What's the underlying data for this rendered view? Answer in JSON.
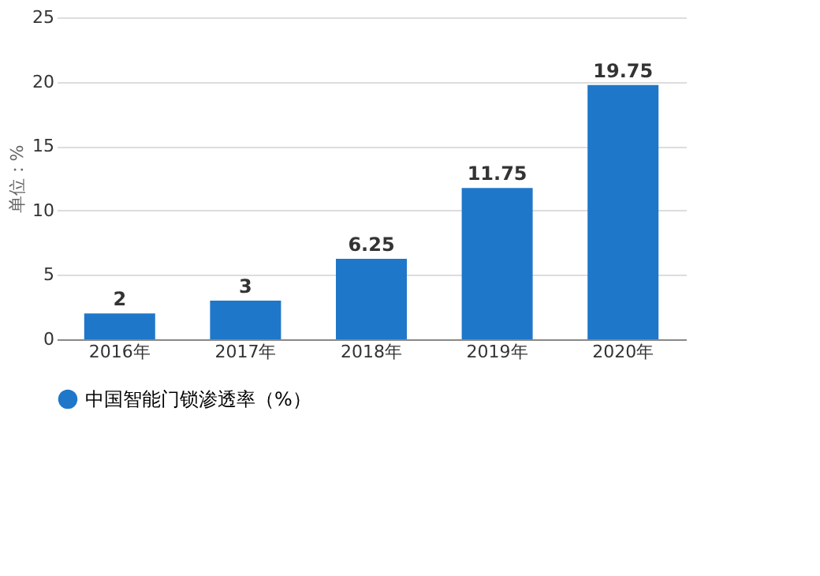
{
  "chart_data": {
    "type": "bar",
    "ylabel": "单位：%",
    "categories": [
      "2016年",
      "2017年",
      "2018年",
      "2019年",
      "2020年"
    ],
    "series": [
      {
        "name": "中国智能门锁渗透率（%）",
        "color": "#1f77c9",
        "values": [
          2,
          3,
          6.25,
          11.75,
          19.75
        ]
      }
    ],
    "ylim": [
      0,
      25
    ],
    "yticks": [
      0,
      5,
      10,
      15,
      20,
      25
    ],
    "grid": "y",
    "legend": "bottom",
    "data_labels": true
  }
}
